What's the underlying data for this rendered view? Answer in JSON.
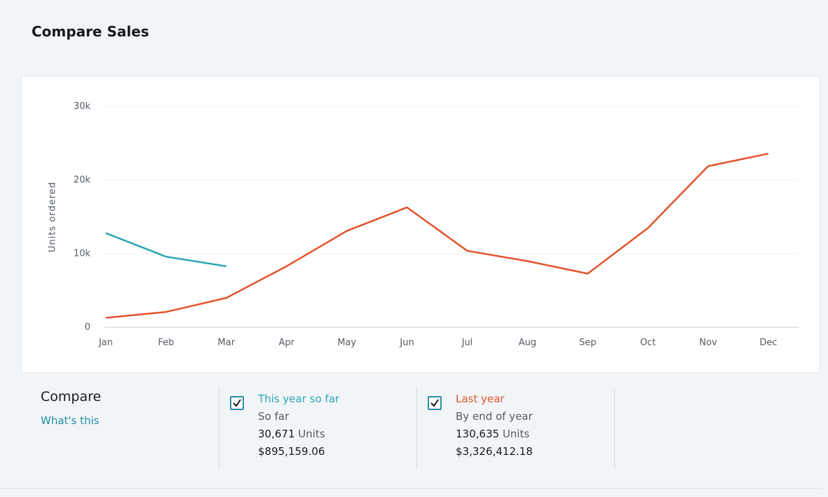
{
  "title": "Compare Sales",
  "chart_data": {
    "type": "line",
    "y_label": "Units ordered",
    "categories": [
      "Jan",
      "Feb",
      "Mar",
      "Apr",
      "May",
      "Jun",
      "Jul",
      "Aug",
      "Sep",
      "Oct",
      "Nov",
      "Dec"
    ],
    "series": [
      {
        "name": "This year so far",
        "color": "#2ba6b5",
        "values": [
          12800,
          9600,
          8300,
          null,
          null,
          null,
          null,
          null,
          null,
          null,
          null,
          null
        ]
      },
      {
        "name": "Last year",
        "color": "#e4532c",
        "values": [
          1300,
          2100,
          4000,
          8300,
          13100,
          16300,
          10400,
          9000,
          7300,
          13500,
          21900,
          23600
        ]
      }
    ],
    "ylim": [
      0,
      30000
    ],
    "yticks": [
      0,
      {
        "value": 10000,
        "label": "10k"
      },
      {
        "value": 20000,
        "label": "20k"
      },
      {
        "value": 30000,
        "label": "30k"
      }
    ],
    "grid": true
  },
  "compare": {
    "heading": "Compare",
    "link": "What's this",
    "items": [
      {
        "subtitle": "So far",
        "units": "30,671",
        "units_label": "Units",
        "revenue": "$895,159.06"
      },
      {
        "subtitle": "By end of year",
        "units": "130,635",
        "units_label": "Units",
        "revenue": "$3,326,412.18"
      }
    ]
  }
}
